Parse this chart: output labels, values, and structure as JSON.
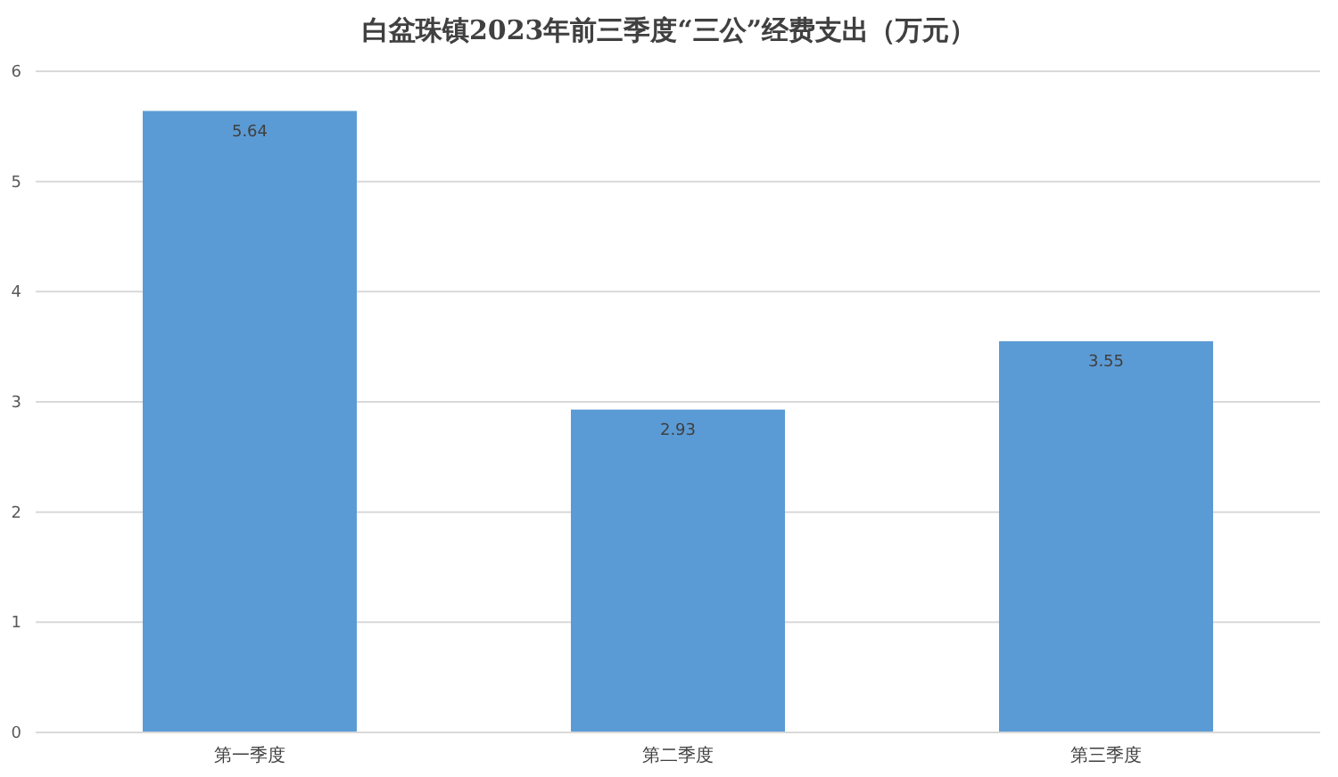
{
  "chart_data": {
    "type": "bar",
    "title": "白盆珠镇2023年前三季度“三公”经费支出（万元）",
    "categories": [
      "第一季度",
      "第二季度",
      "第三季度"
    ],
    "values": [
      5.64,
      2.93,
      3.55
    ],
    "color": "#5b9bd5",
    "ylim": [
      0,
      6
    ],
    "yticks": [
      0,
      1,
      2,
      3,
      4,
      5,
      6
    ],
    "grid": "y",
    "data_labels": true
  }
}
